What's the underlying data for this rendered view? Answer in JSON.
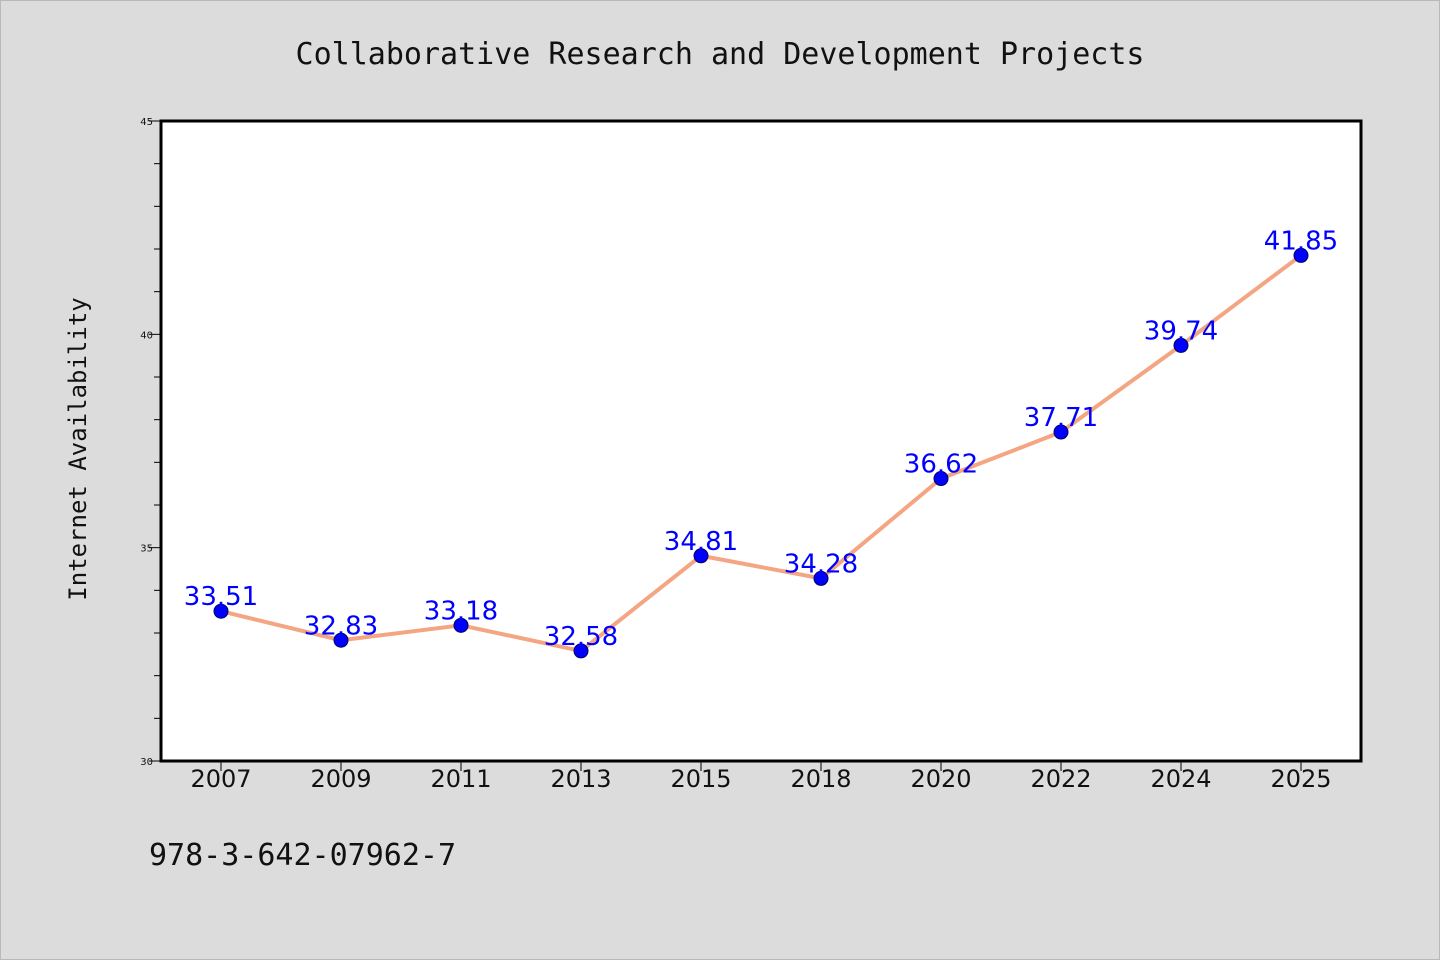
{
  "chart_data": {
    "type": "line",
    "title": "Collaborative Research and Development Projects",
    "xlabel": "",
    "ylabel": "Internet Availability",
    "categories": [
      "2007",
      "2009",
      "2011",
      "2013",
      "2015",
      "2018",
      "2020",
      "2022",
      "2024",
      "2025"
    ],
    "series": [
      {
        "values": [
          33.51,
          32.83,
          33.18,
          32.58,
          34.81,
          34.28,
          36.62,
          37.71,
          39.74,
          41.85
        ],
        "labels": [
          "33.51",
          "32.83",
          "33.18",
          "32.58",
          "34.81",
          "34.28",
          "36.62",
          "37.71",
          "39.74",
          "41.85"
        ],
        "line_color": "#f4a582",
        "marker_color": "#0000ff"
      }
    ],
    "ylim": [
      30,
      45
    ],
    "yticks": [
      30,
      35,
      40,
      45
    ],
    "ytick_labels": [
      "30",
      "35",
      "40",
      "45"
    ],
    "grid": false,
    "legend": "none",
    "data_label_color": "#0000ff"
  },
  "footnote": "978-3-642-07962-7"
}
